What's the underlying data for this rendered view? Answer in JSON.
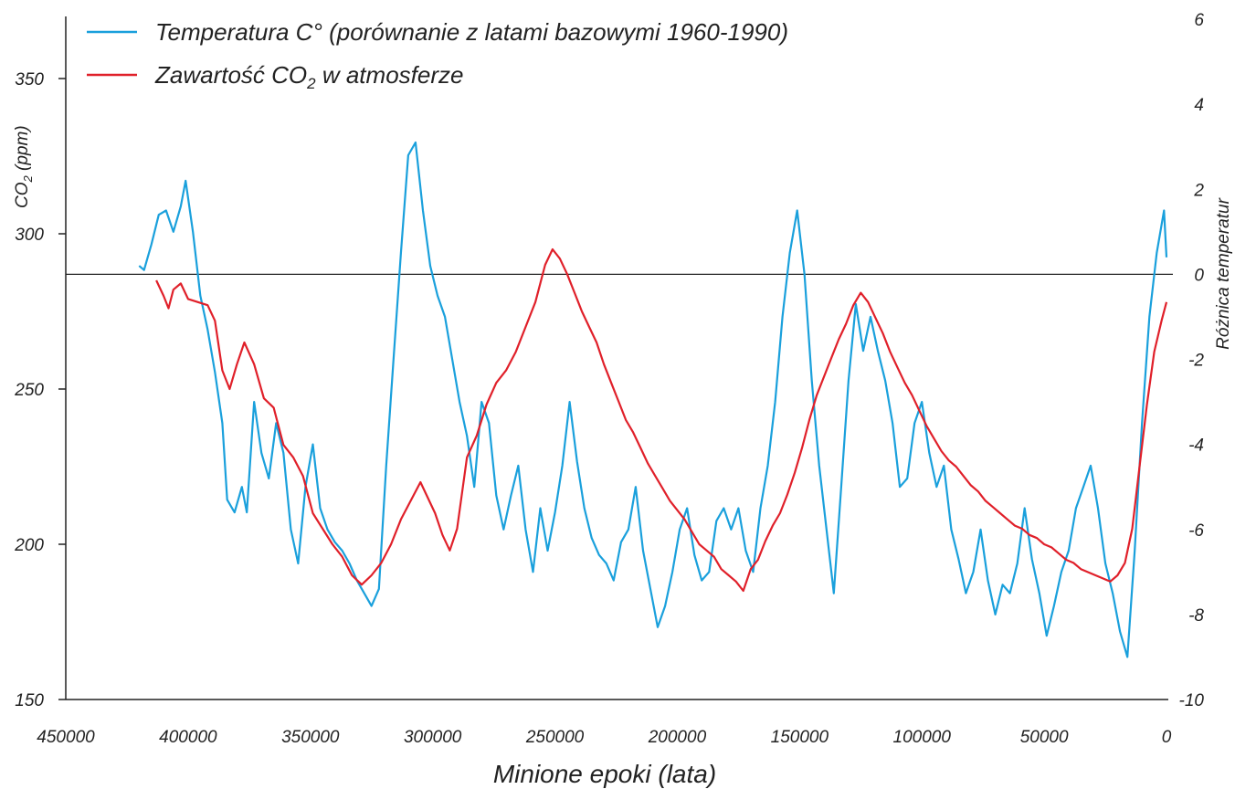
{
  "chart_data": {
    "type": "line",
    "x_axis": {
      "label": "Minione epoki (lata)",
      "range": [
        450000,
        0
      ],
      "ticks": [
        450000,
        400000,
        350000,
        300000,
        250000,
        200000,
        150000,
        100000,
        50000,
        0
      ],
      "tick_labels": [
        "450000",
        "400000",
        "350000",
        "300000",
        "250000",
        "200000",
        "150000",
        "100000",
        "50000",
        "0"
      ]
    },
    "y_left": {
      "label": "CO₂ (ppm)",
      "label_main": "CO",
      "label_sub": "2",
      "label_unit": "(ppm)",
      "range": [
        150,
        370
      ],
      "ticks": [
        150,
        200,
        250,
        300,
        350
      ],
      "tick_labels": [
        "150",
        "200",
        "250",
        "300",
        "350"
      ]
    },
    "y_right": {
      "label": "Różnica temperatur",
      "range": [
        -10,
        6
      ],
      "ticks": [
        6,
        4,
        2,
        0,
        -2,
        -4,
        -6,
        -8,
        -10
      ],
      "tick_labels": [
        "6",
        "4",
        "2",
        "0",
        "-2",
        "-4",
        "-6",
        "-8",
        "-10"
      ]
    },
    "baseline_temperature": 0,
    "legend": {
      "position": "top-left",
      "entries": [
        {
          "text": "Temperatura C° (porównanie z latami bazowymi 1960-1990)",
          "color": "#1aa0dc"
        },
        {
          "text_main": "Zawartość CO",
          "text_sub": "2",
          "text_tail": " w atmosferze",
          "text": "Zawartość CO₂ w atmosferze",
          "color": "#e0202a"
        }
      ]
    },
    "series": [
      {
        "name": "Temperatura C° (porównanie z latami bazowymi 1960-1990)",
        "axis": "right",
        "color": "#1aa0dc",
        "points": [
          [
            420000,
            0.2
          ],
          [
            418000,
            0.1
          ],
          [
            415000,
            0.7
          ],
          [
            412000,
            1.4
          ],
          [
            409000,
            1.5
          ],
          [
            406000,
            1.0
          ],
          [
            403000,
            1.6
          ],
          [
            401000,
            2.2
          ],
          [
            398000,
            1.0
          ],
          [
            395000,
            -0.5
          ],
          [
            392000,
            -1.3
          ],
          [
            389000,
            -2.3
          ],
          [
            386000,
            -3.5
          ],
          [
            384000,
            -5.3
          ],
          [
            381000,
            -5.6
          ],
          [
            378000,
            -5.0
          ],
          [
            376000,
            -5.6
          ],
          [
            373000,
            -3.0
          ],
          [
            370000,
            -4.2
          ],
          [
            367000,
            -4.8
          ],
          [
            364000,
            -3.5
          ],
          [
            361000,
            -4.2
          ],
          [
            358000,
            -6.0
          ],
          [
            355000,
            -6.8
          ],
          [
            352000,
            -5.0
          ],
          [
            349000,
            -4.0
          ],
          [
            346000,
            -5.5
          ],
          [
            343000,
            -6.0
          ],
          [
            340000,
            -6.3
          ],
          [
            337000,
            -6.5
          ],
          [
            334000,
            -6.8
          ],
          [
            331000,
            -7.2
          ],
          [
            328000,
            -7.5
          ],
          [
            325000,
            -7.8
          ],
          [
            322000,
            -7.4
          ],
          [
            319000,
            -4.5
          ],
          [
            316000,
            -2.0
          ],
          [
            313000,
            0.5
          ],
          [
            310000,
            2.8
          ],
          [
            307000,
            3.1
          ],
          [
            304000,
            1.5
          ],
          [
            301000,
            0.2
          ],
          [
            298000,
            -0.5
          ],
          [
            295000,
            -1.0
          ],
          [
            292000,
            -2.0
          ],
          [
            289000,
            -3.0
          ],
          [
            286000,
            -3.8
          ],
          [
            283000,
            -5.0
          ],
          [
            280000,
            -3.0
          ],
          [
            277000,
            -3.5
          ],
          [
            274000,
            -5.2
          ],
          [
            271000,
            -6.0
          ],
          [
            268000,
            -5.2
          ],
          [
            265000,
            -4.5
          ],
          [
            262000,
            -6.0
          ],
          [
            259000,
            -7.0
          ],
          [
            256000,
            -5.5
          ],
          [
            253000,
            -6.5
          ],
          [
            250000,
            -5.6
          ],
          [
            247000,
            -4.5
          ],
          [
            244000,
            -3.0
          ],
          [
            241000,
            -4.4
          ],
          [
            238000,
            -5.5
          ],
          [
            235000,
            -6.2
          ],
          [
            232000,
            -6.6
          ],
          [
            229000,
            -6.8
          ],
          [
            226000,
            -7.2
          ],
          [
            223000,
            -6.3
          ],
          [
            220000,
            -6.0
          ],
          [
            217000,
            -5.0
          ],
          [
            214000,
            -6.5
          ],
          [
            211000,
            -7.4
          ],
          [
            208000,
            -8.3
          ],
          [
            205000,
            -7.8
          ],
          [
            202000,
            -7.0
          ],
          [
            199000,
            -6.0
          ],
          [
            196000,
            -5.5
          ],
          [
            193000,
            -6.6
          ],
          [
            190000,
            -7.2
          ],
          [
            187000,
            -7.0
          ],
          [
            184000,
            -5.8
          ],
          [
            181000,
            -5.5
          ],
          [
            178000,
            -6.0
          ],
          [
            175000,
            -5.5
          ],
          [
            172000,
            -6.5
          ],
          [
            169000,
            -7.0
          ],
          [
            166000,
            -5.5
          ],
          [
            163000,
            -4.5
          ],
          [
            160000,
            -3.0
          ],
          [
            157000,
            -1.0
          ],
          [
            154000,
            0.5
          ],
          [
            151000,
            1.5
          ],
          [
            148000,
            0.0
          ],
          [
            145000,
            -2.5
          ],
          [
            142000,
            -4.5
          ],
          [
            139000,
            -6.0
          ],
          [
            136000,
            -7.5
          ],
          [
            133000,
            -5.0
          ],
          [
            130000,
            -2.5
          ],
          [
            127000,
            -0.7
          ],
          [
            124000,
            -1.8
          ],
          [
            121000,
            -1.0
          ],
          [
            118000,
            -1.8
          ],
          [
            115000,
            -2.5
          ],
          [
            112000,
            -3.5
          ],
          [
            109000,
            -5.0
          ],
          [
            106000,
            -4.8
          ],
          [
            103000,
            -3.5
          ],
          [
            100000,
            -3.0
          ],
          [
            97000,
            -4.2
          ],
          [
            94000,
            -5.0
          ],
          [
            91000,
            -4.5
          ],
          [
            88000,
            -6.0
          ],
          [
            85000,
            -6.7
          ],
          [
            82000,
            -7.5
          ],
          [
            79000,
            -7.0
          ],
          [
            76000,
            -6.0
          ],
          [
            73000,
            -7.2
          ],
          [
            70000,
            -8.0
          ],
          [
            67000,
            -7.3
          ],
          [
            64000,
            -7.5
          ],
          [
            61000,
            -6.8
          ],
          [
            58000,
            -5.5
          ],
          [
            55000,
            -6.7
          ],
          [
            52000,
            -7.5
          ],
          [
            49000,
            -8.5
          ],
          [
            46000,
            -7.8
          ],
          [
            43000,
            -7.0
          ],
          [
            40000,
            -6.5
          ],
          [
            37000,
            -5.5
          ],
          [
            34000,
            -5.0
          ],
          [
            31000,
            -4.5
          ],
          [
            28000,
            -5.5
          ],
          [
            25000,
            -6.8
          ],
          [
            22000,
            -7.5
          ],
          [
            19000,
            -8.4
          ],
          [
            16000,
            -9.0
          ],
          [
            13000,
            -6.5
          ],
          [
            10000,
            -3.5
          ],
          [
            7000,
            -1.0
          ],
          [
            4000,
            0.5
          ],
          [
            1000,
            1.5
          ],
          [
            0,
            0.4
          ]
        ]
      },
      {
        "name": "Zawartość CO₂ w atmosferze",
        "axis": "left",
        "color": "#e0202a",
        "points": [
          [
            413000,
            285
          ],
          [
            410000,
            280
          ],
          [
            408000,
            276
          ],
          [
            406000,
            282
          ],
          [
            403000,
            284
          ],
          [
            400000,
            279
          ],
          [
            396000,
            278
          ],
          [
            392000,
            277
          ],
          [
            389000,
            272
          ],
          [
            386000,
            256
          ],
          [
            383000,
            250
          ],
          [
            380000,
            258
          ],
          [
            377000,
            265
          ],
          [
            373000,
            258
          ],
          [
            369000,
            247
          ],
          [
            365000,
            244
          ],
          [
            361000,
            232
          ],
          [
            357000,
            228
          ],
          [
            353000,
            222
          ],
          [
            349000,
            210
          ],
          [
            345000,
            205
          ],
          [
            341000,
            200
          ],
          [
            337000,
            196
          ],
          [
            333000,
            190
          ],
          [
            329000,
            187
          ],
          [
            325000,
            190
          ],
          [
            321000,
            194
          ],
          [
            317000,
            200
          ],
          [
            313000,
            208
          ],
          [
            309000,
            214
          ],
          [
            305000,
            220
          ],
          [
            302000,
            215
          ],
          [
            299000,
            210
          ],
          [
            296000,
            203
          ],
          [
            293000,
            198
          ],
          [
            290000,
            205
          ],
          [
            286000,
            228
          ],
          [
            282000,
            235
          ],
          [
            278000,
            245
          ],
          [
            274000,
            252
          ],
          [
            270000,
            256
          ],
          [
            266000,
            262
          ],
          [
            262000,
            270
          ],
          [
            258000,
            278
          ],
          [
            254000,
            290
          ],
          [
            251000,
            295
          ],
          [
            248000,
            292
          ],
          [
            245000,
            287
          ],
          [
            242000,
            281
          ],
          [
            239000,
            275
          ],
          [
            236000,
            270
          ],
          [
            233000,
            265
          ],
          [
            230000,
            258
          ],
          [
            227000,
            252
          ],
          [
            224000,
            246
          ],
          [
            221000,
            240
          ],
          [
            218000,
            236
          ],
          [
            215000,
            231
          ],
          [
            212000,
            226
          ],
          [
            209000,
            222
          ],
          [
            206000,
            218
          ],
          [
            203000,
            214
          ],
          [
            200000,
            211
          ],
          [
            197000,
            208
          ],
          [
            194000,
            204
          ],
          [
            191000,
            200
          ],
          [
            188000,
            198
          ],
          [
            185000,
            196
          ],
          [
            182000,
            192
          ],
          [
            179000,
            190
          ],
          [
            176000,
            188
          ],
          [
            173000,
            185
          ],
          [
            170000,
            192
          ],
          [
            167000,
            195
          ],
          [
            164000,
            201
          ],
          [
            161000,
            206
          ],
          [
            158000,
            210
          ],
          [
            155000,
            216
          ],
          [
            152000,
            223
          ],
          [
            149000,
            231
          ],
          [
            146000,
            240
          ],
          [
            143000,
            248
          ],
          [
            140000,
            254
          ],
          [
            137000,
            260
          ],
          [
            134000,
            266
          ],
          [
            131000,
            271
          ],
          [
            128000,
            277
          ],
          [
            125000,
            281
          ],
          [
            122000,
            278
          ],
          [
            119000,
            273
          ],
          [
            116000,
            268
          ],
          [
            113000,
            262
          ],
          [
            110000,
            257
          ],
          [
            107000,
            252
          ],
          [
            104000,
            248
          ],
          [
            101000,
            243
          ],
          [
            98000,
            238
          ],
          [
            95000,
            234
          ],
          [
            92000,
            230
          ],
          [
            89000,
            227
          ],
          [
            86000,
            225
          ],
          [
            83000,
            222
          ],
          [
            80000,
            219
          ],
          [
            77000,
            217
          ],
          [
            74000,
            214
          ],
          [
            71000,
            212
          ],
          [
            68000,
            210
          ],
          [
            65000,
            208
          ],
          [
            62000,
            206
          ],
          [
            59000,
            205
          ],
          [
            56000,
            203
          ],
          [
            53000,
            202
          ],
          [
            50000,
            200
          ],
          [
            47000,
            199
          ],
          [
            44000,
            197
          ],
          [
            41000,
            195
          ],
          [
            38000,
            194
          ],
          [
            35000,
            192
          ],
          [
            32000,
            191
          ],
          [
            29000,
            190
          ],
          [
            26000,
            189
          ],
          [
            23000,
            188
          ],
          [
            20000,
            190
          ],
          [
            17000,
            194
          ],
          [
            14000,
            205
          ],
          [
            11000,
            225
          ],
          [
            8000,
            245
          ],
          [
            5000,
            262
          ],
          [
            2000,
            272
          ],
          [
            0,
            278
          ]
        ]
      }
    ]
  }
}
